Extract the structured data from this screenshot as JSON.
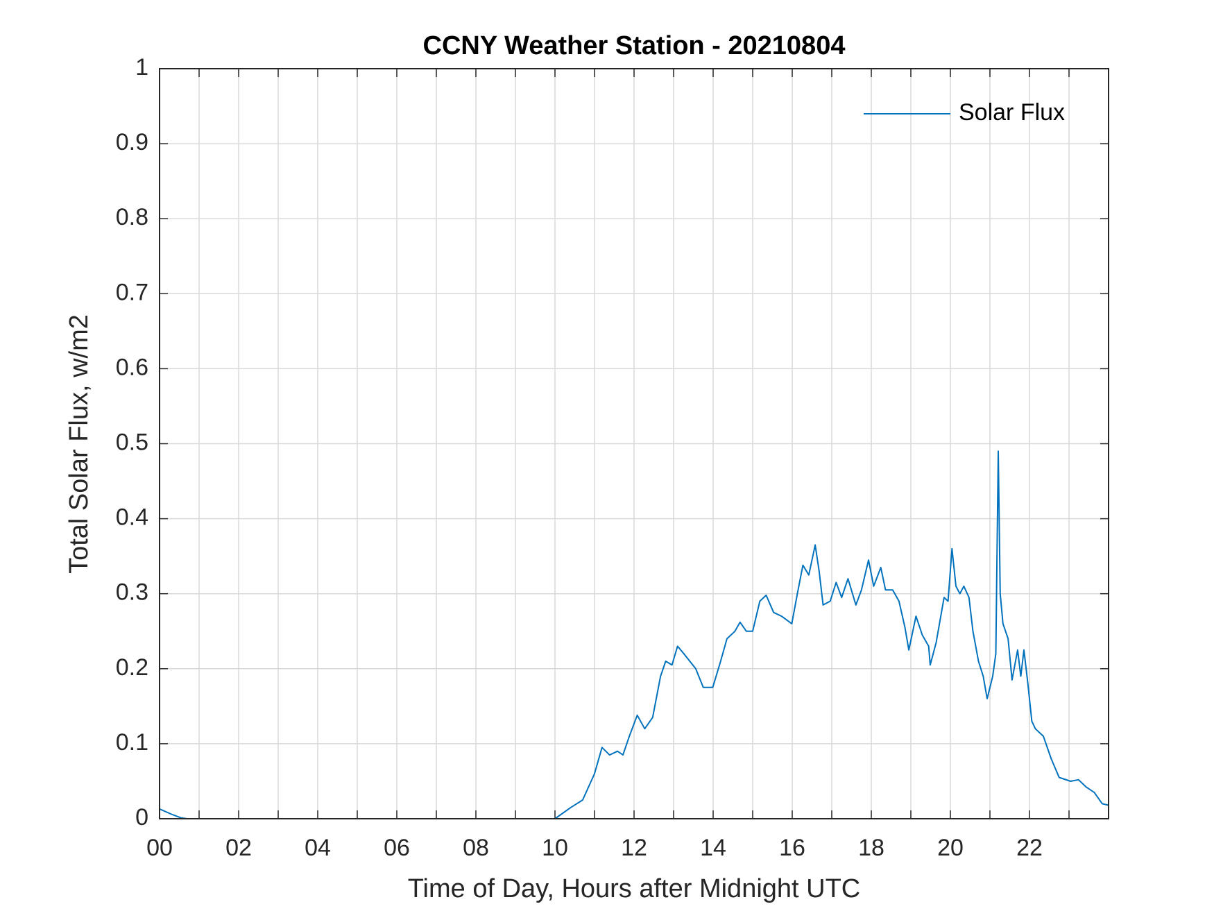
{
  "chart_data": {
    "type": "line",
    "title": "CCNY Weather Station - 20210804",
    "xlabel": "Time of Day, Hours after Midnight UTC",
    "ylabel": "Total Solar Flux, w/m2",
    "xlim": [
      0,
      24
    ],
    "ylim": [
      0,
      1
    ],
    "xticks": [
      {
        "value": 0,
        "label": "00"
      },
      {
        "value": 2,
        "label": "02"
      },
      {
        "value": 4,
        "label": "04"
      },
      {
        "value": 6,
        "label": "06"
      },
      {
        "value": 8,
        "label": "08"
      },
      {
        "value": 10,
        "label": "10"
      },
      {
        "value": 12,
        "label": "12"
      },
      {
        "value": 14,
        "label": "14"
      },
      {
        "value": 16,
        "label": "16"
      },
      {
        "value": 18,
        "label": "18"
      },
      {
        "value": 20,
        "label": "20"
      },
      {
        "value": 22,
        "label": "22"
      }
    ],
    "xminorticks": [
      1,
      3,
      5,
      7,
      9,
      11,
      13,
      15,
      17,
      19,
      21,
      23
    ],
    "yticks": [
      0,
      0.1,
      0.2,
      0.3,
      0.4,
      0.5,
      0.6,
      0.7,
      0.8,
      0.9,
      1
    ],
    "grid": true,
    "legend": "upper right",
    "x": [
      0,
      0.3,
      0.55,
      0.7,
      10.0,
      10.4,
      10.7,
      11.0,
      11.19,
      11.38,
      11.58,
      11.72,
      11.88,
      12.08,
      12.27,
      12.47,
      12.67,
      12.8,
      12.96,
      13.1,
      13.26,
      13.56,
      13.75,
      13.99,
      14.19,
      14.35,
      14.55,
      14.68,
      14.84,
      15.0,
      15.18,
      15.34,
      15.53,
      15.73,
      15.99,
      16.13,
      16.27,
      16.42,
      16.58,
      16.68,
      16.78,
      16.96,
      17.11,
      17.25,
      17.41,
      17.61,
      17.75,
      17.93,
      18.06,
      18.24,
      18.36,
      18.54,
      18.7,
      18.85,
      18.95,
      19.13,
      19.29,
      19.45,
      19.49,
      19.64,
      19.84,
      19.94,
      20.04,
      20.14,
      20.24,
      20.34,
      20.47,
      20.57,
      20.71,
      20.83,
      20.93,
      21.07,
      21.15,
      21.21,
      21.26,
      21.33,
      21.46,
      21.56,
      21.7,
      21.78,
      21.86,
      21.96,
      22.06,
      22.15,
      22.35,
      22.55,
      22.75,
      23.04,
      23.24,
      23.44,
      23.64,
      23.84,
      24.0
    ],
    "series": [
      {
        "name": "Solar Flux",
        "color": "#0072bd",
        "values": [
          0.013,
          0.006,
          0.001,
          0,
          0,
          0.015,
          0.025,
          0.06,
          0.095,
          0.085,
          0.09,
          0.085,
          0.11,
          0.138,
          0.12,
          0.135,
          0.19,
          0.21,
          0.205,
          0.23,
          0.22,
          0.2,
          0.175,
          0.175,
          0.21,
          0.24,
          0.25,
          0.262,
          0.25,
          0.25,
          0.29,
          0.298,
          0.275,
          0.27,
          0.26,
          0.3,
          0.338,
          0.325,
          0.365,
          0.33,
          0.285,
          0.29,
          0.315,
          0.295,
          0.32,
          0.285,
          0.305,
          0.345,
          0.31,
          0.335,
          0.305,
          0.305,
          0.29,
          0.255,
          0.225,
          0.27,
          0.245,
          0.23,
          0.205,
          0.235,
          0.295,
          0.29,
          0.36,
          0.31,
          0.3,
          0.31,
          0.295,
          0.25,
          0.21,
          0.19,
          0.16,
          0.19,
          0.22,
          0.49,
          0.3,
          0.26,
          0.24,
          0.185,
          0.225,
          0.19,
          0.225,
          0.18,
          0.13,
          0.12,
          0.11,
          0.08,
          0.055,
          0.05,
          0.052,
          0.042,
          0.035,
          0.02,
          0.018
        ]
      }
    ]
  }
}
